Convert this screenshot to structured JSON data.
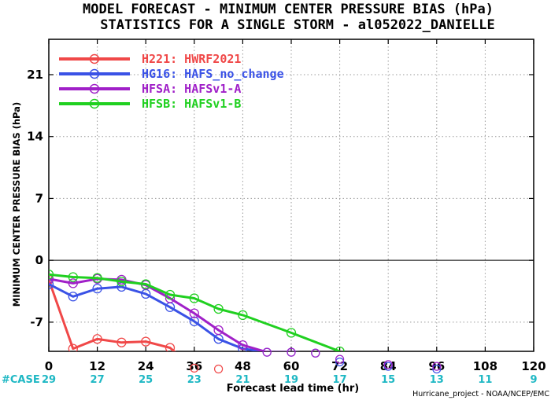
{
  "chart_data": {
    "type": "line",
    "title": "MODEL FORECAST - MINIMUM CENTER PRESSURE BIAS (hPa)",
    "subtitle": "STATISTICS FOR A SINGLE STORM - al052022_DANIELLE",
    "xlabel": "Forecast lead time (hr)",
    "ylabel": "MINIMUM CENTER PRESSURE BIAS (hPa)",
    "xlim": [
      0,
      120
    ],
    "ylim": [
      -10.3,
      25
    ],
    "xticks": [
      0,
      12,
      24,
      36,
      48,
      60,
      72,
      84,
      96,
      108,
      120
    ],
    "yticks": [
      -7,
      0,
      7,
      14,
      21
    ],
    "grid": true,
    "zero_line": true,
    "legend_position": "top-left",
    "case_label": "#CASE",
    "cases": [
      {
        "x": 0,
        "n": "29"
      },
      {
        "x": 12,
        "n": "27"
      },
      {
        "x": 24,
        "n": "25"
      },
      {
        "x": 36,
        "n": "23"
      },
      {
        "x": 48,
        "n": "21"
      },
      {
        "x": 60,
        "n": "19"
      },
      {
        "x": 72,
        "n": "17"
      },
      {
        "x": 84,
        "n": "15"
      },
      {
        "x": 96,
        "n": "13"
      },
      {
        "x": 108,
        "n": "11"
      },
      {
        "x": 120,
        "n": "9"
      }
    ],
    "credit": "Hurricane_project - NOAA/NCEP/EMC",
    "series": [
      {
        "name": "H221: HWRF2021",
        "color": "#f04848",
        "x": [
          0,
          6,
          12,
          18,
          24,
          30,
          36,
          42
        ],
        "y": [
          -2.2,
          -10.0,
          -8.9,
          -9.3,
          -9.2,
          -9.9,
          -12.2,
          -12.3
        ]
      },
      {
        "name": "HG16: HAFS_no_change",
        "color": "#3a52e6",
        "x": [
          0,
          6,
          12,
          18,
          24,
          30,
          36,
          42,
          48,
          54,
          60,
          66,
          72,
          84,
          96
        ],
        "y": [
          -2.7,
          -4.1,
          -3.2,
          -3.0,
          -3.8,
          -5.3,
          -6.9,
          -8.9,
          -10.0,
          -10.4,
          -10.4,
          -10.5,
          -11.5,
          -12.0,
          -12.3
        ]
      },
      {
        "name": "HFSA: HAFSv1-A",
        "color": "#a020c8",
        "x": [
          0,
          6,
          12,
          18,
          24,
          30,
          36,
          42,
          48,
          54,
          60,
          66,
          72,
          84,
          96
        ],
        "y": [
          -2.1,
          -2.6,
          -2.1,
          -2.2,
          -2.8,
          -4.3,
          -6.0,
          -7.9,
          -9.6,
          -10.4,
          -10.4,
          -10.5,
          -11.2,
          -11.8,
          -12.0
        ]
      },
      {
        "name": "HFSB: HAFSv1-B",
        "color": "#20d020",
        "x": [
          0,
          6,
          12,
          18,
          24,
          30,
          36,
          42,
          48,
          60,
          72
        ],
        "y": [
          -1.6,
          -1.9,
          -2.0,
          -2.4,
          -2.7,
          -3.9,
          -4.3,
          -5.5,
          -6.2,
          -8.2,
          -10.3
        ]
      }
    ]
  }
}
